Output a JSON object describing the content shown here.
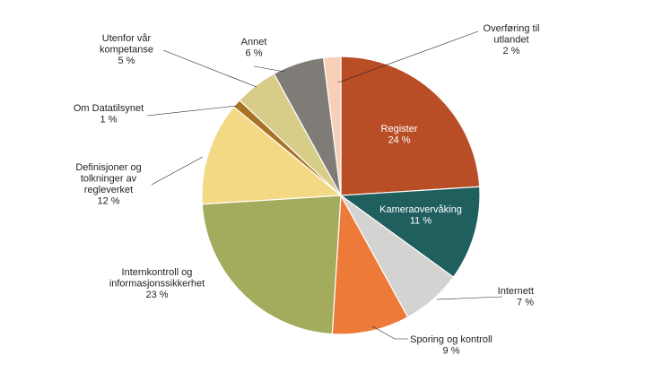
{
  "chart_data": {
    "type": "pie",
    "title": "",
    "start_angle_deg": 0,
    "direction": "clockwise",
    "slices": [
      {
        "label_lines": [
          "Register"
        ],
        "value_label": "24 %",
        "value": 24,
        "color": "#b84d26",
        "label_inside": true
      },
      {
        "label_lines": [
          "Kameraovervåking"
        ],
        "value_label": "11 %",
        "value": 11,
        "color": "#1f5f5e",
        "label_inside": true
      },
      {
        "label_lines": [
          "Internett"
        ],
        "value_label": "7 %",
        "value": 7,
        "color": "#d3d3d1",
        "label_inside": false
      },
      {
        "label_lines": [
          "Sporing og kontroll"
        ],
        "value_label": "9 %",
        "value": 9,
        "color": "#ed7a38",
        "label_inside": false
      },
      {
        "label_lines": [
          "Internkontroll og",
          "informasjonssikkerhet"
        ],
        "value_label": "23 %",
        "value": 23,
        "color": "#a3ab5c",
        "label_inside": false
      },
      {
        "label_lines": [
          "Definisjoner og",
          "tolkninger av",
          "regleverket"
        ],
        "value_label": "12 %",
        "value": 12,
        "color": "#f4d984",
        "label_inside": false
      },
      {
        "label_lines": [
          "Om Datatilsynet"
        ],
        "value_label": "1 %",
        "value": 1,
        "color": "#a87423",
        "label_inside": false
      },
      {
        "label_lines": [
          "Utenfor vår",
          "kompetanse"
        ],
        "value_label": "5 %",
        "value": 5,
        "color": "#d7cd88",
        "label_inside": false
      },
      {
        "label_lines": [
          "Annet"
        ],
        "value_label": "6 %",
        "value": 6,
        "color": "#7f7b77",
        "label_inside": false
      },
      {
        "label_lines": [
          "Overføring til",
          "utlandet"
        ],
        "value_label": "2 %",
        "value": 2,
        "color": "#f9cfb5",
        "label_inside": false
      }
    ]
  }
}
